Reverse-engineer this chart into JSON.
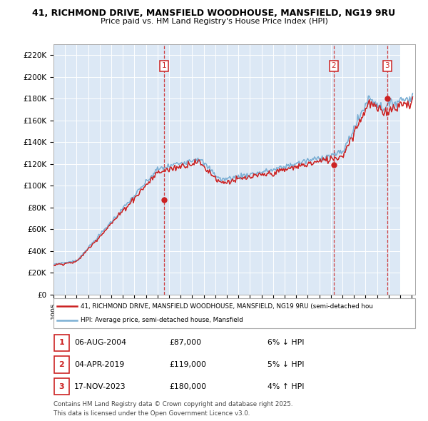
{
  "title_line1": "41, RICHMOND DRIVE, MANSFIELD WOODHOUSE, MANSFIELD, NG19 9RU",
  "title_line2": "Price paid vs. HM Land Registry's House Price Index (HPI)",
  "y_ticks": [
    0,
    20000,
    40000,
    60000,
    80000,
    100000,
    120000,
    140000,
    160000,
    180000,
    200000,
    220000
  ],
  "y_tick_labels": [
    "£0",
    "£20K",
    "£40K",
    "£60K",
    "£80K",
    "£100K",
    "£120K",
    "£140K",
    "£160K",
    "£180K",
    "£200K",
    "£220K"
  ],
  "hpi_color": "#7bafd4",
  "price_color": "#cc2222",
  "purchase_years": [
    2004.589,
    2019.253,
    2023.88
  ],
  "purchase_prices": [
    87000,
    119000,
    180000
  ],
  "purchase_labels": [
    "1",
    "2",
    "3"
  ],
  "vline_color": "#cc2222",
  "marker_box_color": "#cc2222",
  "legend_line1": "41, RICHMOND DRIVE, MANSFIELD WOODHOUSE, MANSFIELD, NG19 9RU (semi-detached hou",
  "legend_line2": "HPI: Average price, semi-detached house, Mansfield",
  "table_entries": [
    {
      "label": "1",
      "date": "06-AUG-2004",
      "price": "£87,000",
      "hpi_diff": "6% ↓ HPI"
    },
    {
      "label": "2",
      "date": "04-APR-2019",
      "price": "£119,000",
      "hpi_diff": "5% ↓ HPI"
    },
    {
      "label": "3",
      "date": "17-NOV-2023",
      "price": "£180,000",
      "hpi_diff": "4% ↑ HPI"
    }
  ],
  "footnote_line1": "Contains HM Land Registry data © Crown copyright and database right 2025.",
  "footnote_line2": "This data is licensed under the Open Government Licence v3.0.",
  "plot_bg_color": "#dce8f5",
  "grid_color": "#ffffff",
  "hatch_start": 2025.0,
  "x_min": 1995,
  "x_max": 2026.3,
  "y_min": 0,
  "y_max": 230000
}
